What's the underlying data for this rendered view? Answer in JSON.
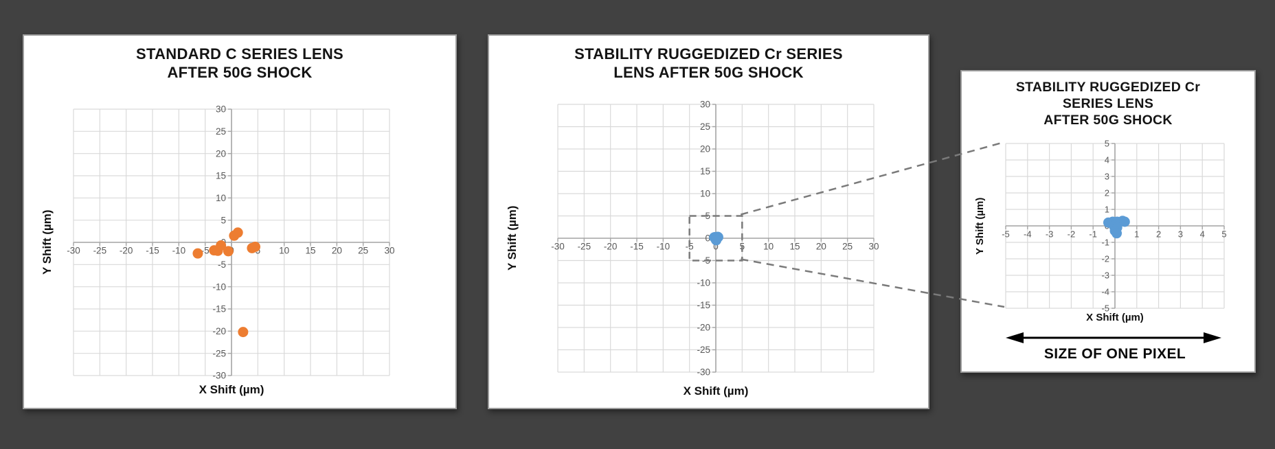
{
  "page": {
    "background_color": "#414141"
  },
  "styles": {
    "card_bg": "#ffffff",
    "card_border": "#9c9c9c",
    "grid_color": "#d9d9d9",
    "axis_color": "#a6a6a6",
    "tick_text_color": "#595959",
    "title_color": "#141414",
    "dash_color": "#7a7a7a",
    "arrow_color": "#000000",
    "orange": "#ED7D31",
    "blue": "#5B9BD5"
  },
  "chart_data": [
    {
      "type": "scatter",
      "title_lines": [
        "STANDARD C SERIES LENS",
        "AFTER 50G SHOCK"
      ],
      "xlabel": "X Shift (µm)",
      "ylabel": "Y Shift (µm)",
      "xlim": [
        -30,
        30
      ],
      "ylim": [
        -30,
        30
      ],
      "xticks": [
        -30,
        -25,
        -20,
        -15,
        -10,
        -5,
        0,
        5,
        10,
        15,
        20,
        25,
        30
      ],
      "yticks": [
        -30,
        -25,
        -20,
        -15,
        -10,
        -5,
        0,
        5,
        10,
        15,
        20,
        25,
        30
      ],
      "grid": true,
      "legend": "none",
      "series": [
        {
          "color": "#ED7D31",
          "points": [
            [
              0.5,
              1.5
            ],
            [
              1.2,
              2.2
            ],
            [
              -2.0,
              -0.7
            ],
            [
              -3.3,
              -1.8
            ],
            [
              -2.6,
              -1.9
            ],
            [
              -6.4,
              -2.5
            ],
            [
              -0.6,
              -2.0
            ],
            [
              3.9,
              -1.3
            ],
            [
              4.5,
              -1.0
            ],
            [
              2.2,
              -20.2
            ]
          ]
        }
      ]
    },
    {
      "type": "scatter",
      "title_lines": [
        "STABILITY RUGGEDIZED Cr SERIES",
        "LENS AFTER 50G SHOCK"
      ],
      "xlabel": "X Shift (µm)",
      "ylabel": "Y Shift (µm)",
      "xlim": [
        -30,
        30
      ],
      "ylim": [
        -30,
        30
      ],
      "xticks": [
        -30,
        -25,
        -20,
        -15,
        -10,
        -5,
        0,
        5,
        10,
        15,
        20,
        25,
        30
      ],
      "yticks": [
        -30,
        -25,
        -20,
        -15,
        -10,
        -5,
        0,
        5,
        10,
        15,
        20,
        25,
        30
      ],
      "grid": true,
      "legend": "none",
      "zoom_box": {
        "xlim": [
          -5,
          5
        ],
        "ylim": [
          -5,
          5
        ]
      },
      "series": [
        {
          "color": "#5B9BD5",
          "points": [
            [
              -0.3,
              0.2
            ],
            [
              -0.1,
              0.25
            ],
            [
              0.1,
              0.25
            ],
            [
              0.35,
              0.3
            ],
            [
              0.45,
              0.25
            ],
            [
              -0.05,
              0.0
            ],
            [
              0.1,
              -0.1
            ],
            [
              0.0,
              -0.3
            ],
            [
              0.08,
              -0.45
            ]
          ]
        }
      ]
    },
    {
      "type": "scatter",
      "title_lines": [
        "STABILITY RUGGEDIZED Cr",
        "SERIES LENS",
        "AFTER 50G SHOCK"
      ],
      "xlabel": "X Shift (µm)",
      "ylabel": "Y Shift (µm)",
      "xlim": [
        -5,
        5
      ],
      "ylim": [
        -5,
        5
      ],
      "xticks": [
        -5,
        -4,
        -3,
        -2,
        -1,
        0,
        1,
        2,
        3,
        4,
        5
      ],
      "yticks": [
        -5,
        -4,
        -3,
        -2,
        -1,
        0,
        1,
        2,
        3,
        4,
        5
      ],
      "grid": true,
      "legend": "none",
      "footnote": "SIZE OF ONE PIXEL",
      "series": [
        {
          "color": "#5B9BD5",
          "points": [
            [
              -0.3,
              0.2
            ],
            [
              -0.1,
              0.25
            ],
            [
              0.1,
              0.25
            ],
            [
              0.35,
              0.3
            ],
            [
              0.45,
              0.25
            ],
            [
              -0.05,
              0.0
            ],
            [
              0.1,
              -0.1
            ],
            [
              0.0,
              -0.3
            ],
            [
              0.08,
              -0.45
            ]
          ]
        }
      ]
    }
  ]
}
